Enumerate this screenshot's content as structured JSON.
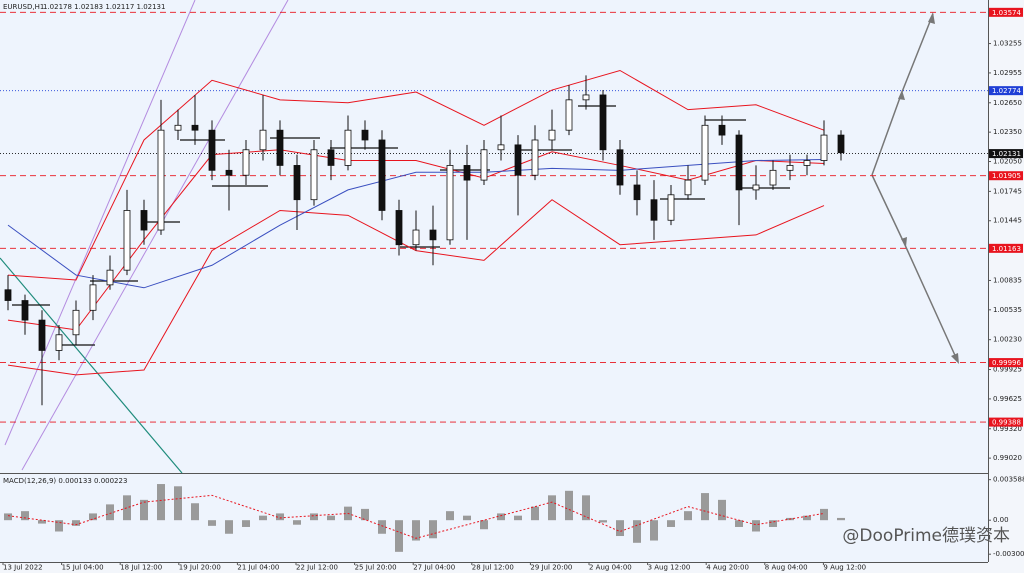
{
  "chart_data": {
    "type": "candlestick",
    "title": "EURUSD,H1",
    "header_values": "1.02178 1.02183 1.02117 1.02131",
    "open": [
      1.0074,
      1.0063,
      1.0043,
      1.0012,
      1.0028,
      1.0053,
      1.0079,
      1.0094,
      1.0155,
      1.0135,
      1.0237,
      1.0242,
      1.0237,
      1.0196,
      1.0191,
      1.0217,
      1.0237,
      1.0201,
      1.0166,
      1.0217,
      1.0201,
      1.0237,
      1.0227,
      1.0155,
      1.012,
      1.0135,
      1.0125,
      1.0201,
      1.0186,
      1.0217,
      1.0222,
      1.0191,
      1.0227,
      1.0237,
      1.0268,
      1.0273,
      1.0217,
      1.0181,
      1.0166,
      1.0145,
      1.0171,
      1.0186,
      1.0242,
      1.0232,
      1.0176,
      1.0181,
      1.0196,
      1.0201,
      1.0206,
      1.0232
    ],
    "high": [
      1.0089,
      1.0069,
      1.0053,
      1.0038,
      1.0063,
      1.0089,
      1.0109,
      1.0176,
      1.0166,
      1.0268,
      1.0258,
      1.0273,
      1.0247,
      1.0217,
      1.0227,
      1.0273,
      1.0247,
      1.0212,
      1.0227,
      1.0227,
      1.0252,
      1.0247,
      1.0237,
      1.0166,
      1.0155,
      1.016,
      1.0217,
      1.0222,
      1.0227,
      1.0252,
      1.0232,
      1.0242,
      1.0258,
      1.0283,
      1.0293,
      1.0278,
      1.0227,
      1.0196,
      1.0186,
      1.0181,
      1.0201,
      1.0252,
      1.0252,
      1.0237,
      1.0201,
      1.0206,
      1.0212,
      1.0212,
      1.0247,
      1.0237
    ],
    "low": [
      1.0053,
      1.0028,
      0.9956,
      1.0002,
      1.0017,
      1.0043,
      1.0074,
      1.0089,
      1.012,
      1.013,
      1.0227,
      1.0222,
      1.0186,
      1.0155,
      1.0181,
      1.0206,
      1.0191,
      1.0135,
      1.016,
      1.0186,
      1.0196,
      1.0217,
      1.0145,
      1.0109,
      1.0114,
      1.0099,
      1.012,
      1.0125,
      1.0181,
      1.0206,
      1.015,
      1.0186,
      1.0217,
      1.0232,
      1.0258,
      1.0206,
      1.0171,
      1.015,
      1.0125,
      1.014,
      1.0166,
      1.0181,
      1.0222,
      1.014,
      1.0166,
      1.0176,
      1.0186,
      1.0191,
      1.0201,
      1.0206
    ],
    "close": [
      1.0063,
      1.0043,
      1.0012,
      1.0028,
      1.0053,
      1.0079,
      1.0094,
      1.0155,
      1.0135,
      1.0237,
      1.0242,
      1.0237,
      1.0196,
      1.0191,
      1.0217,
      1.0237,
      1.0201,
      1.0166,
      1.0217,
      1.0201,
      1.0237,
      1.0227,
      1.0155,
      1.012,
      1.0135,
      1.0125,
      1.0201,
      1.0186,
      1.0217,
      1.0222,
      1.0191,
      1.0227,
      1.0237,
      1.0268,
      1.0273,
      1.0217,
      1.0181,
      1.0166,
      1.0145,
      1.0171,
      1.0186,
      1.0242,
      1.0232,
      1.0176,
      1.0181,
      1.0196,
      1.0201,
      1.0206,
      1.0232,
      1.0214
    ],
    "ylim": [
      0.98868,
      1.037
    ],
    "yticks": [
      1.03255,
      {
        "value": 1.02955,
        "label": "1.02955"
      },
      {
        "value": 1.0265,
        "label": "1.02650"
      },
      {
        "value": 1.0235,
        "label": "1.02350"
      },
      {
        "value": 1.0205,
        "label": "1.02050"
      },
      1.01745,
      1.01445,
      {
        "value": 1.0114,
        "label": "1.01140"
      },
      1.00835,
      1.00535,
      {
        "value": 1.0023,
        "label": "1.00230"
      },
      0.99925,
      0.99625,
      {
        "value": 0.9932,
        "label": "0.99320"
      },
      {
        "value": 0.9902,
        "label": "0.99020"
      }
    ],
    "overlays": [
      {
        "color": "#e8141e",
        "x": [
          0,
          4,
          8,
          12,
          16,
          20,
          24,
          28,
          32,
          36,
          40,
          44,
          48
        ],
        "values": [
          1.0089,
          1.0084,
          1.0227,
          1.0288,
          1.0268,
          1.0265,
          1.0276,
          1.0242,
          1.0278,
          1.0298,
          1.0258,
          1.0263,
          1.0237
        ]
      },
      {
        "color": "#e8141e",
        "x": [
          0,
          4,
          8,
          12,
          16,
          20,
          24,
          28,
          32,
          36,
          40,
          44,
          48
        ],
        "values": [
          1.0043,
          1.0033,
          1.0125,
          1.0212,
          1.0217,
          1.0206,
          1.0206,
          1.0188,
          1.0215,
          1.0201,
          1.0186,
          1.0206,
          1.0203
        ]
      },
      {
        "color": "#e8141e",
        "x": [
          0,
          4,
          8,
          12,
          16,
          20,
          24,
          28,
          32,
          36,
          40,
          44,
          48
        ],
        "values": [
          0.9997,
          0.9987,
          0.9992,
          1.0114,
          1.0155,
          1.015,
          1.0114,
          1.0104,
          1.0166,
          1.012,
          1.0125,
          1.013,
          1.016
        ]
      },
      {
        "color": "#3a4fc0",
        "x": [
          0,
          4,
          8,
          12,
          16,
          20,
          24,
          28,
          32,
          36,
          40,
          44,
          48
        ],
        "values": [
          1.014,
          1.0089,
          1.0076,
          1.0099,
          1.014,
          1.0176,
          1.0194,
          1.0194,
          1.0198,
          1.0196,
          1.0201,
          1.0206,
          1.0207
        ]
      }
    ],
    "levels": [
      {
        "value": 1.03574,
        "color": "#e8141e",
        "style": "dashed"
      },
      {
        "value": 1.02774,
        "color": "#1f3fd6",
        "style": "dotted"
      },
      {
        "value": 1.02131,
        "color": "#111111",
        "style": "dotted"
      },
      {
        "value": 1.01905,
        "color": "#e8141e",
        "style": "dashed"
      },
      {
        "value": 1.01163,
        "color": "#e8141e",
        "style": "dashed"
      },
      {
        "value": 0.99996,
        "color": "#e8141e",
        "style": "dashed"
      },
      {
        "value": 0.99388,
        "color": "#e8141e",
        "style": "dashed"
      }
    ],
    "x_labels": [
      "13 Jul 2022",
      "15 Jul 04:00",
      "18 Jul 12:00",
      "19 Jul 20:00",
      "21 Jul 04:00",
      "22 Jul 12:00",
      "25 Jul 20:00",
      "27 Jul 04:00",
      "28 Jul 12:00",
      "29 Jul 20:00",
      "2 Aug 04:00",
      "3 Aug 12:00",
      "4 Aug 20:00",
      "8 Aug 04:00",
      "9 Aug 12:00"
    ],
    "macd": {
      "label": "MACD(12,26,9) 0.000133 0.000223",
      "ylim": [
        -0.0037,
        0.004
      ],
      "yticks": [
        0.003588,
        {
          "value": 0,
          "label": "0.00"
        },
        -0.003009
      ],
      "histogram": [
        0.0006,
        0.0008,
        -0.0003,
        -0.001,
        -0.0005,
        0.0006,
        0.0014,
        0.0022,
        0.0018,
        0.0032,
        0.003,
        0.0015,
        -0.0005,
        -0.0012,
        -0.0006,
        0.0004,
        0.0006,
        -0.0004,
        0.0006,
        0.0004,
        0.0012,
        0.001,
        -0.0012,
        -0.0028,
        -0.0018,
        -0.0016,
        0.0008,
        0.0004,
        -0.0008,
        0.0006,
        0.0004,
        0.0012,
        0.0022,
        0.0026,
        0.0022,
        -0.0002,
        -0.0014,
        -0.002,
        -0.0018,
        -0.0006,
        0.0008,
        0.0024,
        0.0018,
        -0.0006,
        -0.001,
        -0.0006,
        0.0002,
        0.0004,
        0.001,
        0.0002
      ],
      "histogram_color": "#9a9a9a",
      "signal": {
        "color": "#e8141e",
        "x": [
          0,
          4,
          8,
          12,
          16,
          20,
          24,
          28,
          32,
          36,
          40,
          44,
          48
        ],
        "values": [
          0.0004,
          -0.0004,
          0.0016,
          0.0022,
          0.0002,
          0.0006,
          -0.0016,
          0,
          0.0016,
          -0.001,
          0.0012,
          -0.0004,
          0.0006
        ]
      }
    },
    "watermark": "@DooPrime德璞资本"
  }
}
